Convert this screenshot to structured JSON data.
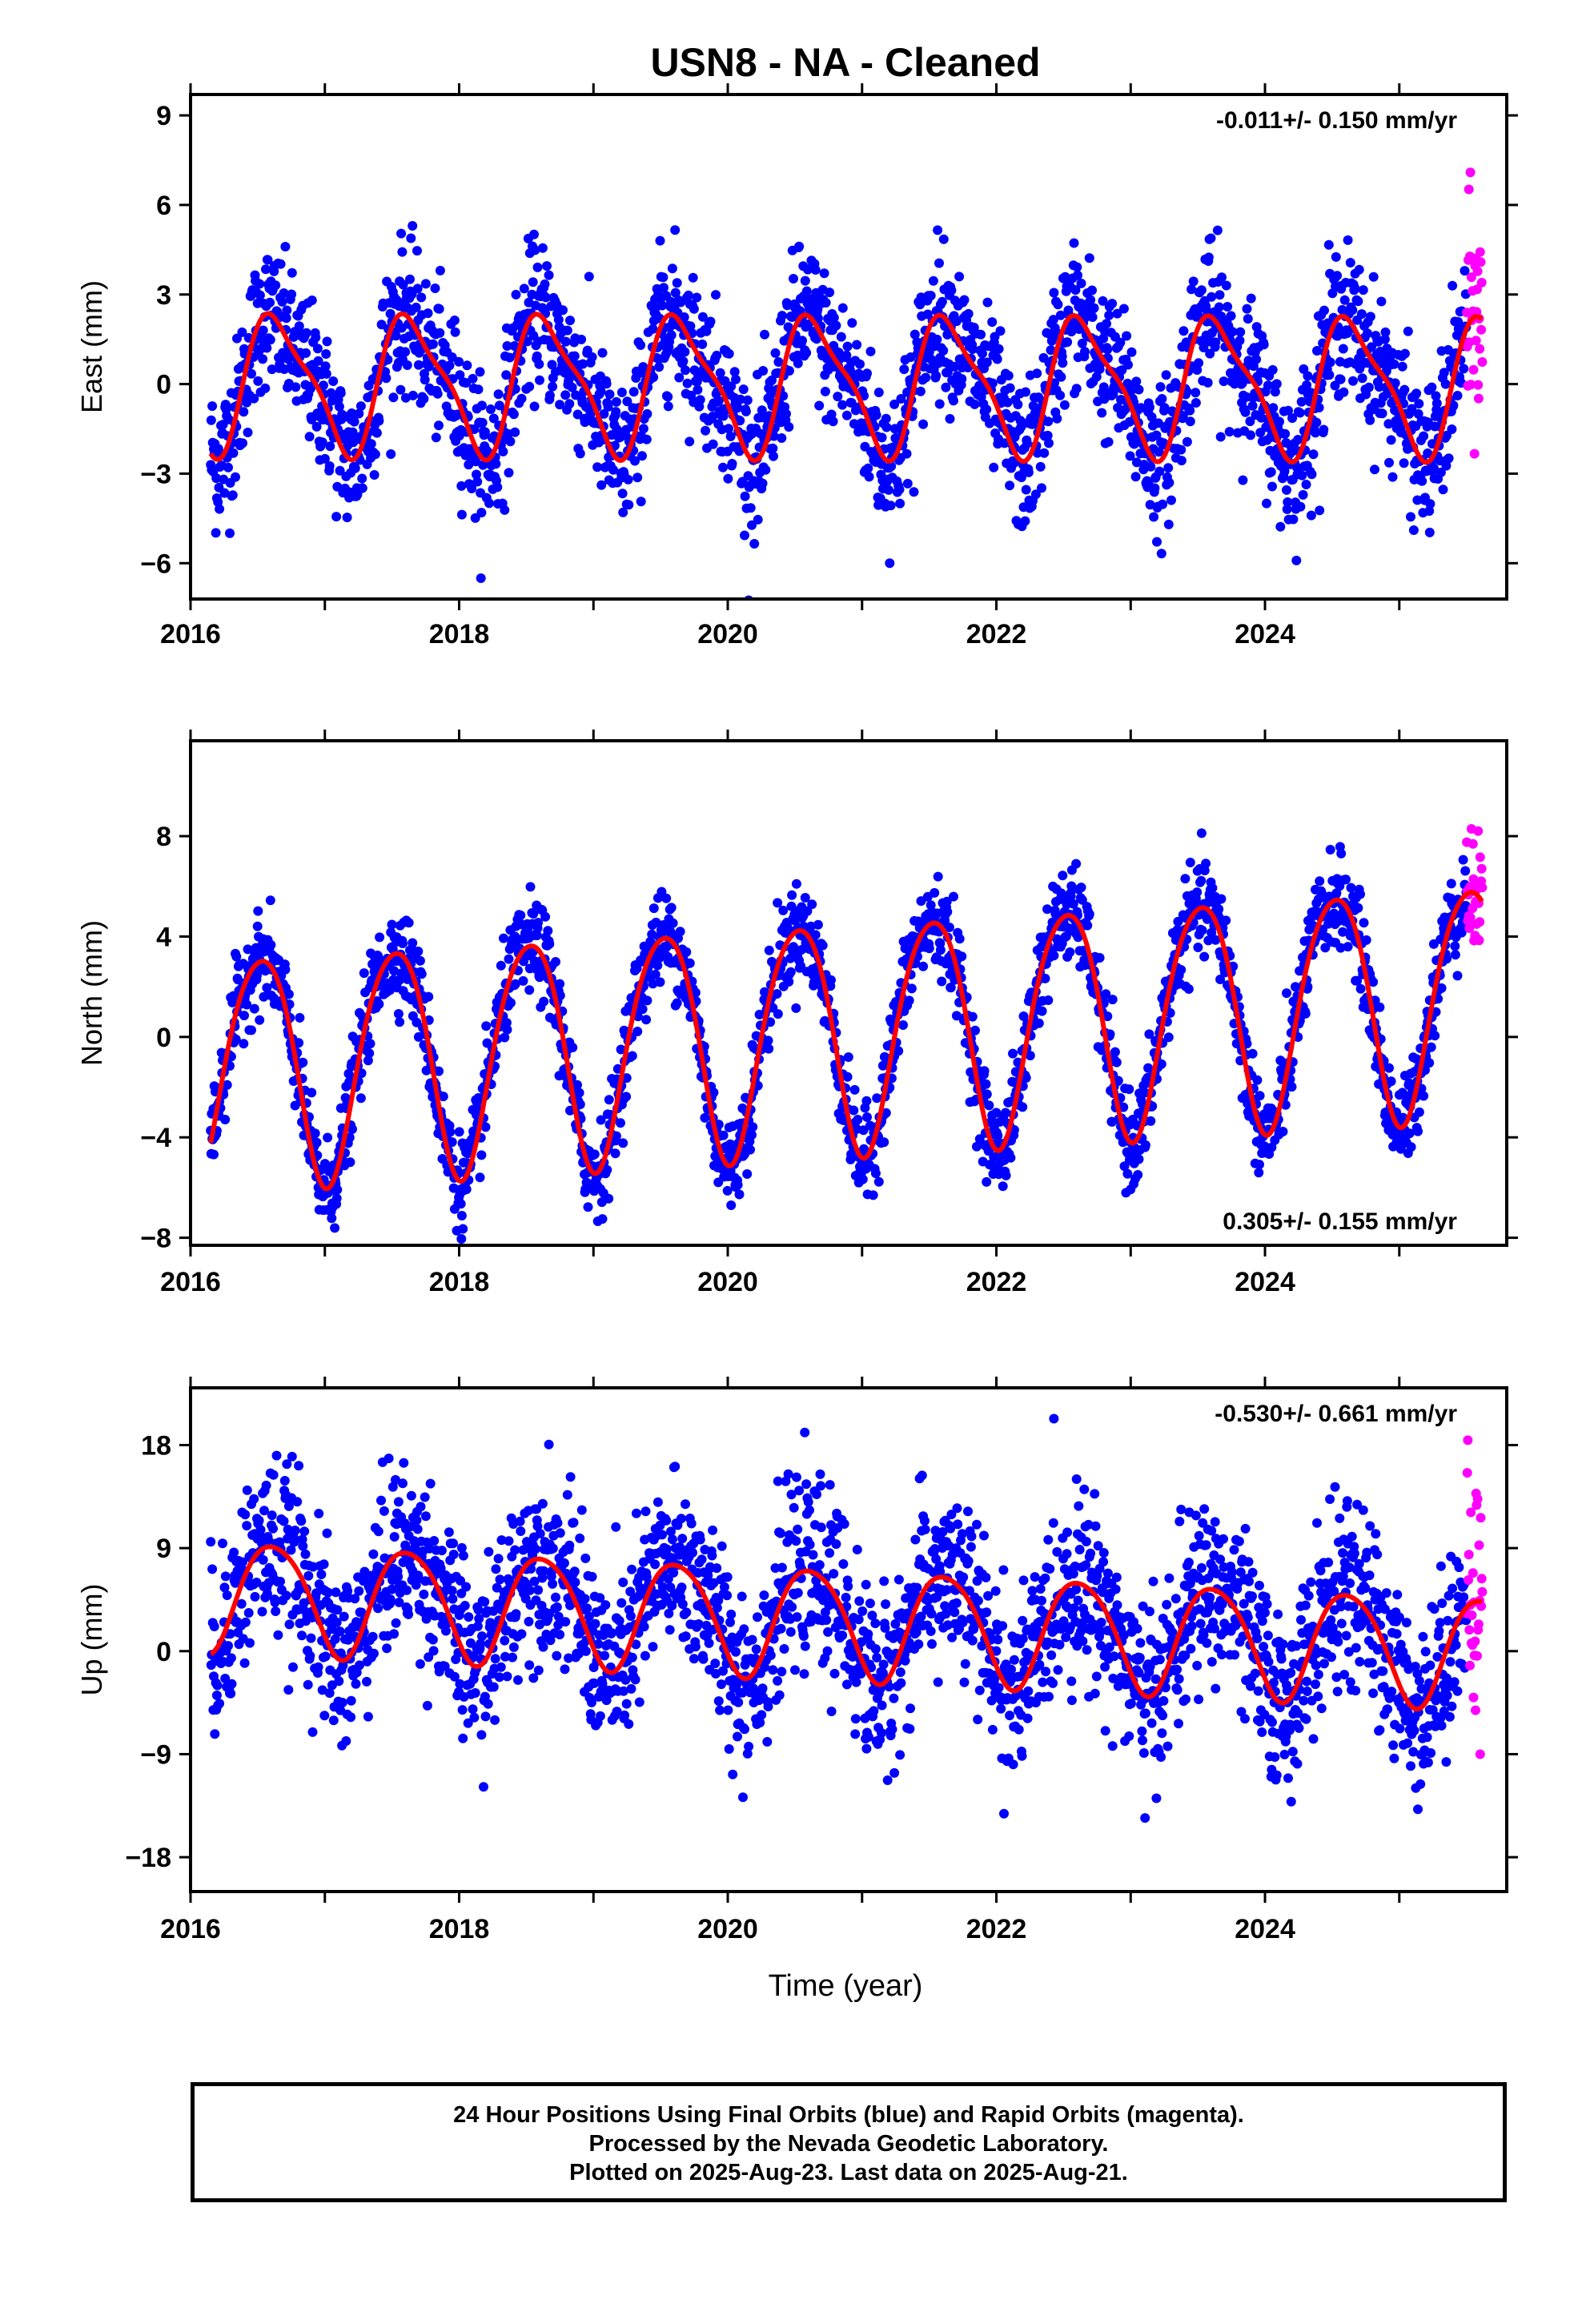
{
  "title": "USN8  - NA - Cleaned",
  "xlabel": "Time (year)",
  "colors": {
    "final_orbits": "#0000ff",
    "rapid_orbits": "#ff00ff",
    "trend": "#ff0000",
    "frame": "#000000"
  },
  "footer": [
    "24 Hour Positions Using Final Orbits (blue) and Rapid Orbits (magenta).",
    "Processed by the Nevada Geodetic Laboratory.",
    "Plotted on 2025-Aug-23. Last data on 2025-Aug-21."
  ],
  "chart_data": [
    {
      "type": "scatter",
      "component": "East",
      "ylabel": "East (mm)",
      "rate_label": "-0.011+/- 0.150 mm/yr",
      "rate_position": "top-right",
      "xlim": [
        2016.0,
        2025.8
      ],
      "ylim": [
        -7.2,
        9.7
      ],
      "yticks": [
        -6,
        -3,
        0,
        3,
        6,
        9
      ],
      "xticks": [
        2016,
        2018,
        2020,
        2022,
        2024
      ],
      "seasonal_model": {
        "bias": 0.0,
        "trend": -0.011,
        "annual_amp": 2.2,
        "peak_phase": 0.65,
        "semiannual_amp": 0.6,
        "semiannual_peak_phase": 0.5,
        "scatter": 1.2,
        "start": 2016.15,
        "end": 2025.62,
        "rapid_start": 2025.5
      }
    },
    {
      "type": "scatter",
      "component": "North",
      "ylabel": "North (mm)",
      "rate_label": "0.305+/- 0.155 mm/yr",
      "rate_position": "bottom-right",
      "xlim": [
        2016.0,
        2025.8
      ],
      "ylim": [
        -8.3,
        11.8
      ],
      "yticks": [
        -8,
        -4,
        0,
        4,
        8
      ],
      "xticks": [
        2016,
        2018,
        2020,
        2022,
        2024
      ],
      "seasonal_model": {
        "bias": 0.25,
        "trend": 0.305,
        "annual_amp": 4.6,
        "peak_phase": 0.52,
        "semiannual_amp": 0.5,
        "semiannual_peak_phase": 0.25,
        "scatter": 0.9,
        "start": 2016.15,
        "end": 2025.62,
        "rapid_start": 2025.5
      }
    },
    {
      "type": "scatter",
      "component": "Up",
      "ylabel": "Up (mm)",
      "rate_label": "-0.530+/- 0.661 mm/yr",
      "rate_position": "top-right",
      "xlim": [
        2016.0,
        2025.8
      ],
      "ylim": [
        -21.0,
        23.0
      ],
      "yticks": [
        -18,
        -9,
        0,
        9,
        18
      ],
      "xticks": [
        2016,
        2018,
        2020,
        2022,
        2024
      ],
      "seasonal_model": {
        "bias": 2.5,
        "trend": -0.53,
        "annual_amp": 4.8,
        "peak_phase": 0.62,
        "semiannual_amp": 0.6,
        "semiannual_peak_phase": 0.4,
        "scatter": 3.8,
        "start": 2016.15,
        "end": 2025.62,
        "rapid_start": 2025.5
      }
    }
  ]
}
